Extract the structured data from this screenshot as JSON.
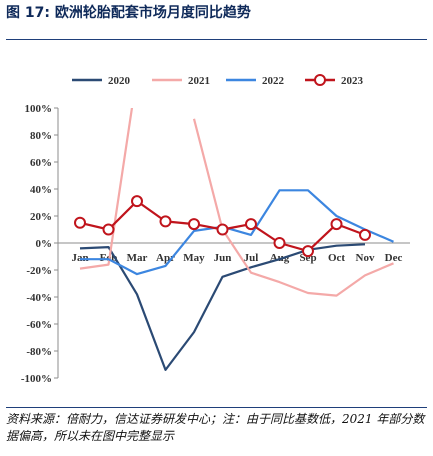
{
  "header": {
    "title": "图 17:  欧洲轮胎配套市场月度同比趋势"
  },
  "footer": {
    "source": "资料来源：倍耐力，信达证券研发中心；注：由于同比基数低，2021 年部分数据偏高，所以未在图中完整显示"
  },
  "chart_data": {
    "type": "line",
    "title": "",
    "xlabel": "",
    "ylabel": "",
    "categories": [
      "Jan",
      "Feb",
      "Mar",
      "Apr",
      "May",
      "Jun",
      "Jul",
      "Aug",
      "Sep",
      "Oct",
      "Nov",
      "Dec"
    ],
    "y_ticks": [
      "100%",
      "80%",
      "60%",
      "40%",
      "20%",
      "0%",
      "-20%",
      "-40%",
      "-60%",
      "-80%",
      "-100%"
    ],
    "ylim": [
      -100,
      100
    ],
    "y_unit": "%",
    "grid": false,
    "legend_position": "top",
    "series": [
      {
        "name": "2020",
        "color": "#2b4a74",
        "marker": "none",
        "values": [
          -4,
          -3,
          -38,
          -94,
          -66,
          -25,
          -18,
          -12,
          -5,
          -2,
          -1,
          null
        ]
      },
      {
        "name": "2021",
        "color": "#f4a9a8",
        "marker": "none",
        "values": [
          -19,
          -16,
          125,
          null,
          92,
          10,
          -22,
          -29,
          -37,
          -39,
          -24,
          -15
        ]
      },
      {
        "name": "2022",
        "color": "#3c86e0",
        "marker": "none",
        "values": [
          -12,
          -12,
          -23,
          -17,
          9,
          12,
          6,
          39,
          39,
          20,
          10,
          1
        ]
      },
      {
        "name": "2023",
        "color": "#c0141c",
        "marker": "circle",
        "values": [
          15,
          10,
          31,
          16,
          14,
          10,
          14,
          0,
          -6,
          14,
          6,
          null
        ]
      }
    ]
  }
}
